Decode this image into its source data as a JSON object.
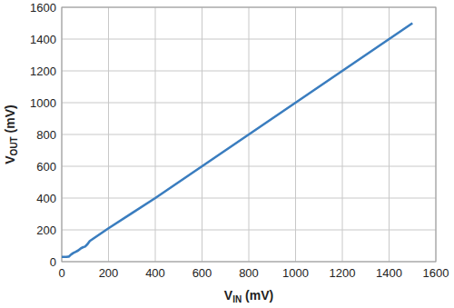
{
  "chart_data": {
    "type": "line",
    "x_label": "VIN (mV)",
    "y_label": "VOUT (mV)",
    "x": [
      0,
      20,
      30,
      40,
      50,
      60,
      70,
      80,
      90,
      100,
      110,
      120,
      150,
      200,
      300,
      400,
      600,
      800,
      1000,
      1200,
      1400,
      1500
    ],
    "series": [
      {
        "name": "VOUT",
        "color": "#3a7dbf",
        "values": [
          30,
          30,
          32,
          45,
          55,
          62,
          70,
          82,
          90,
          95,
          110,
          130,
          160,
          210,
          305,
          400,
          600,
          800,
          1000,
          1200,
          1400,
          1500
        ]
      }
    ],
    "xlim": [
      0,
      1600
    ],
    "xticks": [
      0,
      200,
      400,
      600,
      800,
      1000,
      1200,
      1400,
      1600
    ],
    "ylim": [
      0,
      1600
    ],
    "yticks": [
      0,
      200,
      400,
      600,
      800,
      1000,
      1200,
      1400,
      1600
    ],
    "grid": true
  }
}
